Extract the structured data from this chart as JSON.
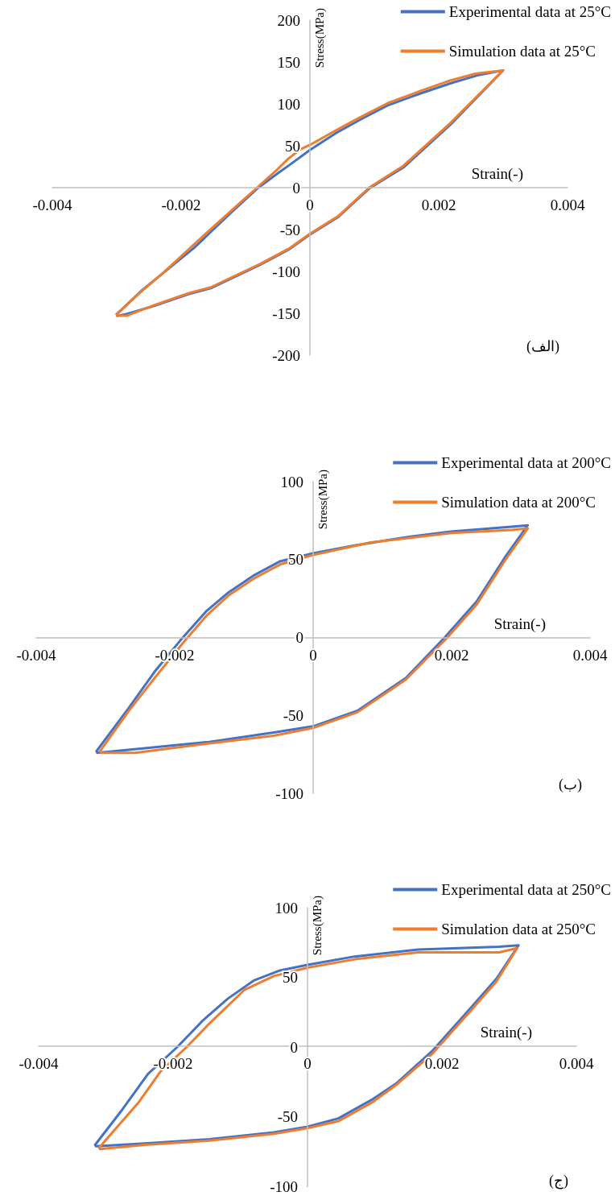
{
  "chart_data": [
    {
      "type": "line",
      "xlabel": "Strain(-)",
      "ylabel": "Stress(MPa)",
      "annotations": [
        "(الف)"
      ],
      "xlim": [
        -0.004,
        0.004
      ],
      "ylim": [
        -200,
        200
      ],
      "xticks": [
        -0.004,
        -0.002,
        0,
        0.002,
        0.004
      ],
      "yticks": [
        -200,
        -150,
        -100,
        -50,
        0,
        50,
        100,
        150,
        200
      ],
      "grid": false,
      "legend": "top right",
      "marker": "none",
      "line_style": "solid",
      "series": [
        {
          "name": "Experimental data at 25°C",
          "color": "#4472c4",
          "x": [
            -0.003,
            -0.0026,
            -0.0022,
            -0.0018,
            -0.0015,
            -0.0012,
            -0.0008,
            -0.0005,
            -0.0003,
            0,
            0.0004,
            0.0008,
            0.0012,
            0.0017,
            0.0022,
            0.0026,
            0.003,
            0.00218,
            0.00145,
            0.00092,
            0.00044,
            0,
            -0.00033,
            -0.00077,
            -0.00154,
            -0.00188,
            -0.00241,
            -0.00285,
            -0.00299
          ],
          "values": [
            -151,
            -122,
            -97,
            -72,
            -50,
            -28,
            0,
            17,
            28,
            45,
            65,
            82,
            98,
            112,
            125,
            134,
            140,
            75,
            24,
            -1,
            -35,
            -56,
            -74,
            -92,
            -120,
            -127,
            -141,
            -151,
            -153
          ]
        },
        {
          "name": "Simulation data at 25°C",
          "color": "#ed7d31",
          "x": [
            -0.003,
            -0.00265,
            -0.00227,
            -0.00193,
            -0.00159,
            -0.0012,
            -0.00082,
            -0.00053,
            -0.00033,
            -0.00014,
            0,
            0.00044,
            0.00078,
            0.00121,
            0.0017,
            0.00218,
            0.00257,
            0.003,
            0.00218,
            0.00145,
            0.00092,
            0.00044,
            0,
            -0.00033,
            -0.00077,
            -0.00154,
            -0.00188,
            -0.00241,
            -0.00285,
            -0.00299
          ],
          "values": [
            -151,
            -126,
            -101,
            -77,
            -53,
            -26,
            0,
            20,
            35,
            46,
            51,
            70,
            84,
            101,
            115,
            128,
            136,
            140,
            77,
            26,
            0,
            -34,
            -55,
            -73,
            -91,
            -119,
            -126,
            -140,
            -153,
            -153
          ]
        }
      ]
    },
    {
      "type": "line",
      "xlabel": "Strain(-)",
      "ylabel": "Stress(MPa)",
      "annotations": [
        "(ب)"
      ],
      "xlim": [
        -0.004,
        0.004
      ],
      "ylim": [
        -100,
        100
      ],
      "xticks": [
        -0.004,
        -0.002,
        0,
        0.002,
        0.004
      ],
      "yticks": [
        -100,
        -50,
        0,
        50,
        100
      ],
      "grid": false,
      "legend": "top right",
      "marker": "none",
      "line_style": "solid",
      "series": [
        {
          "name": "Experimental data at 200°C",
          "color": "#4472c4",
          "x": [
            -0.00313,
            -0.00266,
            -0.00229,
            -0.00192,
            -0.00154,
            -0.00122,
            -0.00085,
            -0.00047,
            0,
            0.0006,
            0.00129,
            0.00199,
            0.00287,
            0.0031,
            0.00278,
            0.00236,
            0.0019,
            0.00134,
            0.00064,
            0,
            -0.00057,
            -0.0015,
            -0.00243,
            -0.00312
          ],
          "values": [
            -73,
            -45,
            -22,
            -2,
            17,
            29,
            40,
            49,
            54,
            59,
            64,
            68,
            71,
            72,
            52,
            23,
            0,
            -26,
            -47,
            -57,
            -61,
            -67,
            -71,
            -74
          ]
        },
        {
          "name": "Simulation data at 200°C",
          "color": "#ed7d31",
          "x": [
            -0.00308,
            -0.00266,
            -0.00229,
            -0.00187,
            -0.00154,
            -0.00122,
            -0.00085,
            -0.00047,
            0,
            0.00083,
            0.002,
            0.00287,
            0.0031,
            0.00278,
            0.00236,
            0.00194,
            0.00134,
            0.00064,
            0,
            -0.00057,
            -0.0015,
            -0.00257,
            -0.00307
          ],
          "values": [
            -73,
            -47,
            -26,
            -3,
            14,
            27,
            38,
            47,
            53,
            61,
            67,
            69,
            70,
            50,
            21,
            0,
            -27,
            -48,
            -58,
            -63,
            -68,
            -74,
            -74
          ]
        }
      ]
    },
    {
      "type": "line",
      "xlabel": "Strain(-)",
      "ylabel": "Stress(MPa)",
      "annotations": [
        "(ج)"
      ],
      "xlim": [
        -0.004,
        0.004
      ],
      "ylim": [
        -100,
        100
      ],
      "xticks": [
        -0.004,
        -0.002,
        0,
        0.002,
        0.004
      ],
      "yticks": [
        -100,
        -50,
        0,
        50,
        100
      ],
      "grid": false,
      "legend": "top right",
      "marker": "none",
      "line_style": "solid",
      "series": [
        {
          "name": "Experimental data at 250°C",
          "color": "#4472c4",
          "x": [
            -0.00316,
            -0.00276,
            -0.00237,
            -0.00194,
            -0.00156,
            -0.00118,
            -0.00079,
            -0.00041,
            0,
            0.0007,
            0.00165,
            0.00285,
            0.00314,
            0.00281,
            0.00237,
            0.00185,
            0.00132,
            0.00098,
            0.00046,
            0,
            -0.0005,
            -0.00146,
            -0.00242,
            -0.00315
          ],
          "values": [
            -70,
            -45,
            -19,
            0,
            19,
            35,
            48,
            55,
            59,
            65,
            70,
            72,
            73,
            49,
            25,
            -3,
            -26,
            -37,
            -51,
            -57,
            -61,
            -66,
            -69,
            -71
          ]
        },
        {
          "name": "Simulation data at 250°C",
          "color": "#ed7d31",
          "x": [
            -0.0031,
            -0.00252,
            -0.00218,
            -0.0018,
            -0.00146,
            -0.00094,
            -0.0005,
            0,
            0.0007,
            0.00165,
            0.00285,
            0.00312,
            0.00281,
            0.00237,
            0.00185,
            0.00132,
            0.00098,
            0.00046,
            0,
            -0.0005,
            -0.00146,
            -0.00242,
            -0.00309
          ],
          "values": [
            -72,
            -40,
            -17,
            0,
            17,
            41,
            51,
            57,
            63,
            68,
            68,
            71,
            47,
            23,
            -5,
            -27,
            -39,
            -53,
            -58,
            -62,
            -67,
            -70,
            -73
          ]
        }
      ]
    }
  ]
}
